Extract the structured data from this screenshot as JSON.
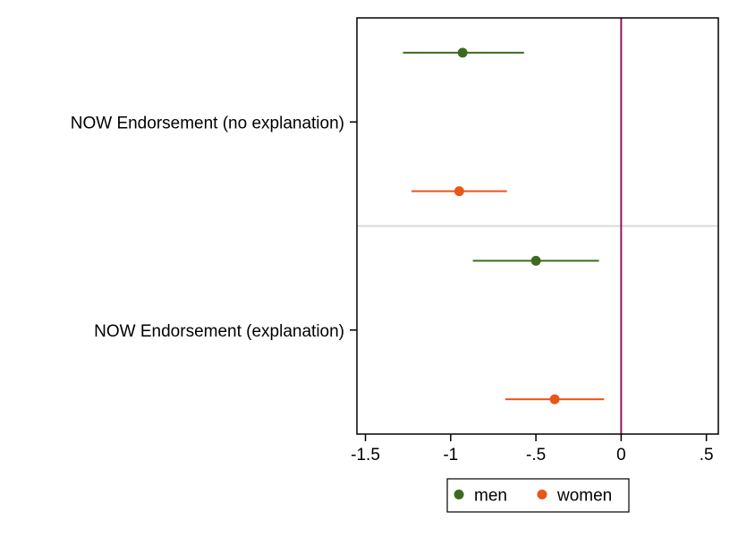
{
  "chart_data": {
    "type": "scatter",
    "subtype": "coefficient-plot",
    "title": "",
    "xlabel": "",
    "ylabel": "",
    "xlim": [
      -1.55,
      0.57
    ],
    "x_ticks": [
      -1.5,
      -1,
      -0.5,
      0,
      0.5
    ],
    "x_tick_labels": [
      "-1.5",
      "-1",
      "-.5",
      "0",
      ".5"
    ],
    "reference_line_x": 0,
    "categories": [
      "NOW Endorsement (no explanation)",
      "NOW Endorsement (explanation)"
    ],
    "series": [
      {
        "name": "men",
        "color": "#3d6b1e",
        "points": [
          {
            "category": "NOW Endorsement (no explanation)",
            "estimate": -0.93,
            "ci_low": -1.28,
            "ci_high": -0.57
          },
          {
            "category": "NOW Endorsement (explanation)",
            "estimate": -0.5,
            "ci_low": -0.87,
            "ci_high": -0.13
          }
        ]
      },
      {
        "name": "women",
        "color": "#e8561a",
        "points": [
          {
            "category": "NOW Endorsement (no explanation)",
            "estimate": -0.95,
            "ci_low": -1.23,
            "ci_high": -0.67
          },
          {
            "category": "NOW Endorsement (explanation)",
            "estimate": -0.39,
            "ci_low": -0.68,
            "ci_high": -0.1
          }
        ]
      }
    ],
    "grid": false,
    "legend_position": "bottom",
    "colors": {
      "reference_line": "#8b1a5a",
      "separator": "#d9d9d9",
      "frame": "#000000"
    }
  }
}
